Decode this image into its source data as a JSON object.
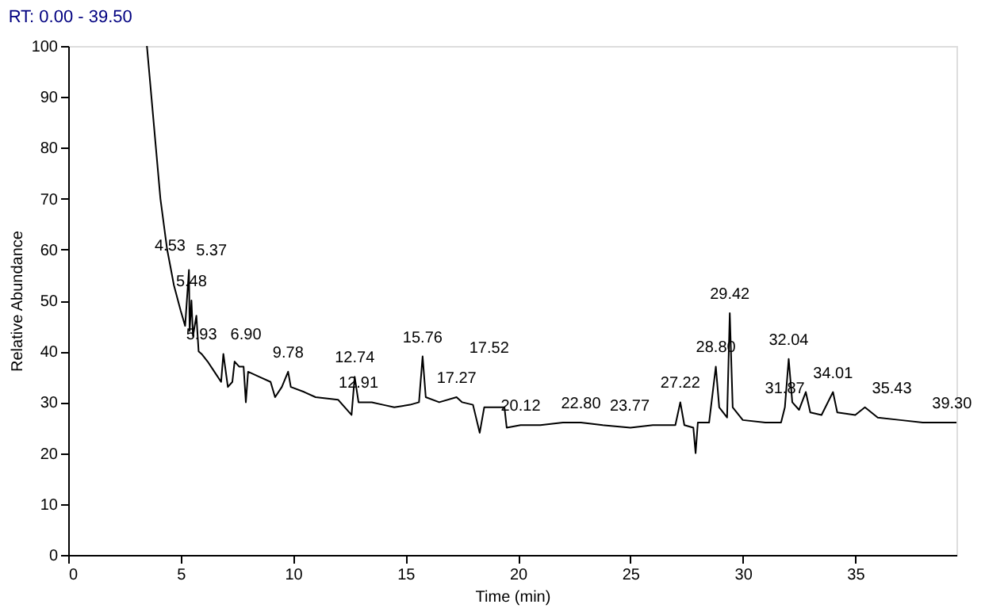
{
  "chart_data": {
    "type": "line",
    "title": "RT: 0.00 - 39.50",
    "xlabel": "Time (min)",
    "ylabel": "Relative Abundance",
    "xlim": [
      0,
      39.5
    ],
    "xticks": [
      0,
      5,
      10,
      15,
      20,
      25,
      30,
      35
    ],
    "ylim": [
      0,
      100
    ],
    "yticks": [
      0,
      10,
      20,
      30,
      40,
      50,
      60,
      70,
      80,
      90,
      100
    ],
    "grid": false,
    "marker": "none",
    "line_style": "solid",
    "series": [
      {
        "color": "#000000",
        "x": [
          3.5,
          3.7,
          3.9,
          4.1,
          4.4,
          4.53,
          4.7,
          5.0,
          5.2,
          5.37,
          5.4,
          5.48,
          5.55,
          5.7,
          5.8,
          5.93,
          6.2,
          6.5,
          6.8,
          6.9,
          7.1,
          7.3,
          7.4,
          7.6,
          7.8,
          7.9,
          8.0,
          8.5,
          9.0,
          9.2,
          9.5,
          9.78,
          9.9,
          10.5,
          11.0,
          12.0,
          12.6,
          12.74,
          12.91,
          13.5,
          14.0,
          14.5,
          15.2,
          15.6,
          15.76,
          15.9,
          16.5,
          17.27,
          17.52,
          18.0,
          18.3,
          18.5,
          19.4,
          19.5,
          20.12,
          21.0,
          22.0,
          22.8,
          23.77,
          25.0,
          26.0,
          27.0,
          27.22,
          27.4,
          27.8,
          27.9,
          28.0,
          28.5,
          28.8,
          28.95,
          29.3,
          29.42,
          29.55,
          30.0,
          31.0,
          31.7,
          31.87,
          32.04,
          32.2,
          32.5,
          32.8,
          33.0,
          33.5,
          34.01,
          34.2,
          35.0,
          35.43,
          36.0,
          37.0,
          38.0,
          39.3,
          39.5
        ],
        "values": [
          100,
          90,
          80,
          70,
          60,
          57,
          53,
          48,
          45,
          56,
          44,
          50,
          43,
          47,
          40,
          39.5,
          38,
          36,
          34,
          39.5,
          33,
          34,
          38,
          37,
          37,
          30,
          36,
          35,
          34,
          31,
          33,
          36,
          33,
          32,
          31,
          30.5,
          27.5,
          35,
          30,
          30,
          29.5,
          29,
          29.5,
          30,
          39,
          31,
          30,
          31,
          30,
          29.5,
          24,
          29,
          29,
          25,
          25.5,
          25.5,
          26,
          26,
          25.5,
          25,
          25.5,
          25.5,
          30,
          25.5,
          25,
          20,
          26,
          26,
          37,
          29,
          27,
          47.5,
          29,
          26.5,
          26,
          26,
          29,
          38.5,
          30,
          28.5,
          32,
          28,
          27.5,
          32,
          28,
          27.5,
          29,
          27,
          26.5,
          26,
          26,
          26
        ]
      }
    ],
    "annotations": [
      {
        "text": "4.53",
        "x": 4.53,
        "y": 57
      },
      {
        "text": "5.37",
        "x": 5.37,
        "y": 56
      },
      {
        "text": "5.48",
        "x": 5.48,
        "y": 50
      },
      {
        "text": "5.93",
        "x": 5.93,
        "y": 39.5
      },
      {
        "text": "6.90",
        "x": 6.9,
        "y": 39.5
      },
      {
        "text": "9.78",
        "x": 9.78,
        "y": 36
      },
      {
        "text": "12.74",
        "x": 12.74,
        "y": 35
      },
      {
        "text": "12.91",
        "x": 12.91,
        "y": 30
      },
      {
        "text": "15.76",
        "x": 15.76,
        "y": 39
      },
      {
        "text": "17.27",
        "x": 17.27,
        "y": 31
      },
      {
        "text": "17.52",
        "x": 17.52,
        "y": 30
      },
      {
        "text": "20.12",
        "x": 20.12,
        "y": 25.5
      },
      {
        "text": "22.80",
        "x": 22.8,
        "y": 26
      },
      {
        "text": "23.77",
        "x": 23.77,
        "y": 25.5
      },
      {
        "text": "27.22",
        "x": 27.22,
        "y": 30
      },
      {
        "text": "28.80",
        "x": 28.8,
        "y": 37
      },
      {
        "text": "29.42",
        "x": 29.42,
        "y": 47.5
      },
      {
        "text": "31.87",
        "x": 31.87,
        "y": 29
      },
      {
        "text": "32.04",
        "x": 32.04,
        "y": 38.5
      },
      {
        "text": "34.01",
        "x": 34.01,
        "y": 32
      },
      {
        "text": "35.43",
        "x": 35.43,
        "y": 29
      },
      {
        "text": "39.30",
        "x": 39.3,
        "y": 26
      }
    ]
  }
}
